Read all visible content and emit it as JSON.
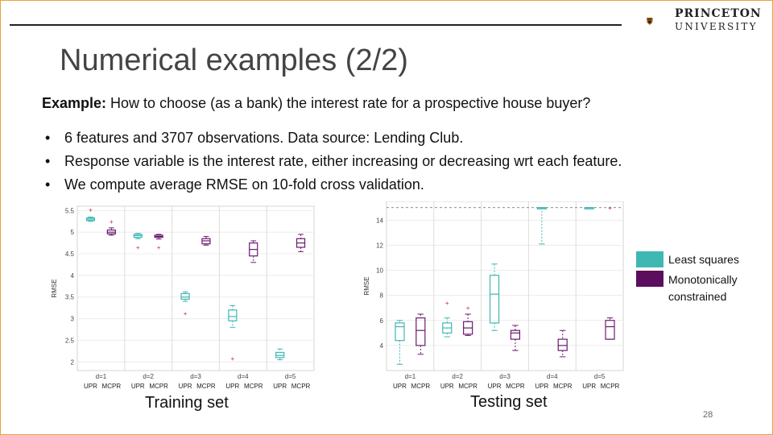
{
  "header": {
    "logo_line1": "PRINCETON",
    "logo_line2": "UNIVERSITY",
    "title": "Numerical examples (2/2)"
  },
  "example": {
    "label": "Example:",
    "text": " How to choose (as a bank) the interest rate for a prospective house buyer?"
  },
  "bullets": [
    "6 features and 3707 observations. Data source: Lending Club.",
    "Response variable is the interest rate, either increasing or decreasing wrt each feature.",
    "We compute average RMSE on 10-fold cross validation."
  ],
  "legend": {
    "items": [
      {
        "label": "Least squares",
        "color": "#3fb8b4"
      },
      {
        "label": "Monotonically constrained",
        "color": "#5b0e5e"
      }
    ]
  },
  "captions": {
    "training": "Training set",
    "testing": "Testing set"
  },
  "page_number": "28",
  "colors": {
    "upr": "#3fb8b4",
    "mcpr": "#6b1a70",
    "outlier": "#c0243a",
    "accent_border": "#e8a33a"
  },
  "chart_data": [
    {
      "type": "boxplot",
      "title": "Training set",
      "ylabel": "RMSE",
      "ylim": [
        1.8,
        5.6
      ],
      "yticks": [
        "2",
        "2.5",
        "3",
        "3.5",
        "4",
        "4.5",
        "5",
        "5.5"
      ],
      "groups": [
        "d=1",
        "d=2",
        "d=3",
        "d=4",
        "d=5"
      ],
      "methods": [
        "UPR",
        "MCPR"
      ],
      "boxes": [
        {
          "group": "d=1",
          "method": "UPR",
          "min": 5.25,
          "q1": 5.27,
          "median": 5.3,
          "q3": 5.33,
          "max": 5.35,
          "outliers": [
            5.52
          ]
        },
        {
          "group": "d=1",
          "method": "MCPR",
          "min": 4.93,
          "q1": 4.96,
          "median": 5.0,
          "q3": 5.05,
          "max": 5.1,
          "outliers": [
            5.25
          ]
        },
        {
          "group": "d=2",
          "method": "UPR",
          "min": 4.85,
          "q1": 4.88,
          "median": 4.92,
          "q3": 4.95,
          "max": 4.97,
          "outliers": [
            4.65
          ]
        },
        {
          "group": "d=2",
          "method": "MCPR",
          "min": 4.84,
          "q1": 4.88,
          "median": 4.9,
          "q3": 4.93,
          "max": 4.95,
          "outliers": [
            4.65
          ]
        },
        {
          "group": "d=3",
          "method": "UPR",
          "min": 3.4,
          "q1": 3.45,
          "median": 3.5,
          "q3": 3.58,
          "max": 3.62,
          "outliers": [
            3.12
          ]
        },
        {
          "group": "d=3",
          "method": "MCPR",
          "min": 4.7,
          "q1": 4.73,
          "median": 4.8,
          "q3": 4.85,
          "max": 4.9,
          "outliers": []
        },
        {
          "group": "d=4",
          "method": "UPR",
          "min": 2.8,
          "q1": 2.95,
          "median": 3.05,
          "q3": 3.2,
          "max": 3.3,
          "outliers": [
            2.08
          ]
        },
        {
          "group": "d=4",
          "method": "MCPR",
          "min": 4.3,
          "q1": 4.45,
          "median": 4.6,
          "q3": 4.75,
          "max": 4.8,
          "outliers": []
        },
        {
          "group": "d=5",
          "method": "UPR",
          "min": 2.05,
          "q1": 2.1,
          "median": 2.15,
          "q3": 2.22,
          "max": 2.3,
          "outliers": []
        },
        {
          "group": "d=5",
          "method": "MCPR",
          "min": 4.55,
          "q1": 4.65,
          "median": 4.75,
          "q3": 4.85,
          "max": 4.95,
          "outliers": []
        }
      ]
    },
    {
      "type": "boxplot",
      "title": "Testing set",
      "ylabel": "RMSE",
      "ylim": [
        2,
        15.5
      ],
      "yticks": [
        "4",
        "6",
        "8",
        "10",
        "12",
        "14"
      ],
      "groups": [
        "d=1",
        "d=2",
        "d=3",
        "d=4",
        "d=5"
      ],
      "methods": [
        "UPR",
        "MCPR"
      ],
      "boxes": [
        {
          "group": "d=1",
          "method": "UPR",
          "min": 2.5,
          "q1": 4.4,
          "median": 5.5,
          "q3": 5.8,
          "max": 6.0,
          "outliers": []
        },
        {
          "group": "d=1",
          "method": "MCPR",
          "min": 3.3,
          "q1": 4.0,
          "median": 5.2,
          "q3": 6.2,
          "max": 6.5,
          "outliers": []
        },
        {
          "group": "d=2",
          "method": "UPR",
          "min": 4.7,
          "q1": 5.0,
          "median": 5.4,
          "q3": 5.8,
          "max": 6.2,
          "outliers": [
            7.4
          ]
        },
        {
          "group": "d=2",
          "method": "MCPR",
          "min": 4.8,
          "q1": 4.9,
          "median": 5.4,
          "q3": 5.9,
          "max": 6.5,
          "outliers": [
            7.0
          ]
        },
        {
          "group": "d=3",
          "method": "UPR",
          "min": 5.2,
          "q1": 5.8,
          "median": 8.1,
          "q3": 9.6,
          "max": 10.5,
          "outliers": []
        },
        {
          "group": "d=3",
          "method": "MCPR",
          "min": 3.6,
          "q1": 4.5,
          "median": 5.0,
          "q3": 5.2,
          "max": 5.6,
          "outliers": []
        },
        {
          "group": "d=4",
          "method": "UPR",
          "min": 12.1,
          "q1": 15.0,
          "median": 15.0,
          "q3": 15.0,
          "max": 15.0,
          "outliers": []
        },
        {
          "group": "d=4",
          "method": "MCPR",
          "min": 3.1,
          "q1": 3.6,
          "median": 4.0,
          "q3": 4.5,
          "max": 5.2,
          "outliers": []
        },
        {
          "group": "d=5",
          "method": "UPR",
          "min": 15.0,
          "q1": 15.0,
          "median": 15.0,
          "q3": 15.0,
          "max": 15.0,
          "outliers": []
        },
        {
          "group": "d=5",
          "method": "MCPR",
          "min": 4.5,
          "q1": 4.5,
          "median": 5.5,
          "q3": 6.0,
          "max": 6.2,
          "outliers": [
            15.0
          ]
        }
      ]
    }
  ]
}
